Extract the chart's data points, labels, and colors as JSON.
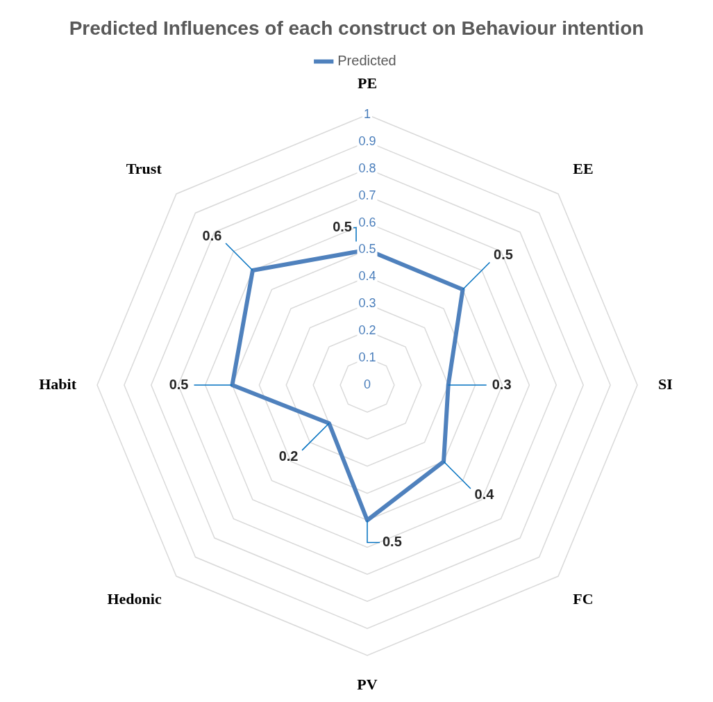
{
  "chart_data": {
    "type": "radar",
    "title": "Predicted Influences of each construct on Behaviour intention",
    "categories": [
      "PE",
      "EE",
      "SI",
      "FC",
      "PV",
      "Hedonic",
      "Habit",
      "Trust"
    ],
    "series": [
      {
        "name": "Predicted",
        "color": "#4f81bd",
        "values": [
          0.5,
          0.5,
          0.3,
          0.4,
          0.5,
          0.2,
          0.5,
          0.6
        ]
      }
    ],
    "ylim": [
      0,
      1
    ],
    "yticks": [
      0,
      0.1,
      0.2,
      0.3,
      0.4,
      0.5,
      0.6,
      0.7,
      0.8,
      0.9,
      1
    ],
    "grid": true,
    "legend": "top",
    "marker": "none",
    "line_style": "solid",
    "data_labels": true
  }
}
